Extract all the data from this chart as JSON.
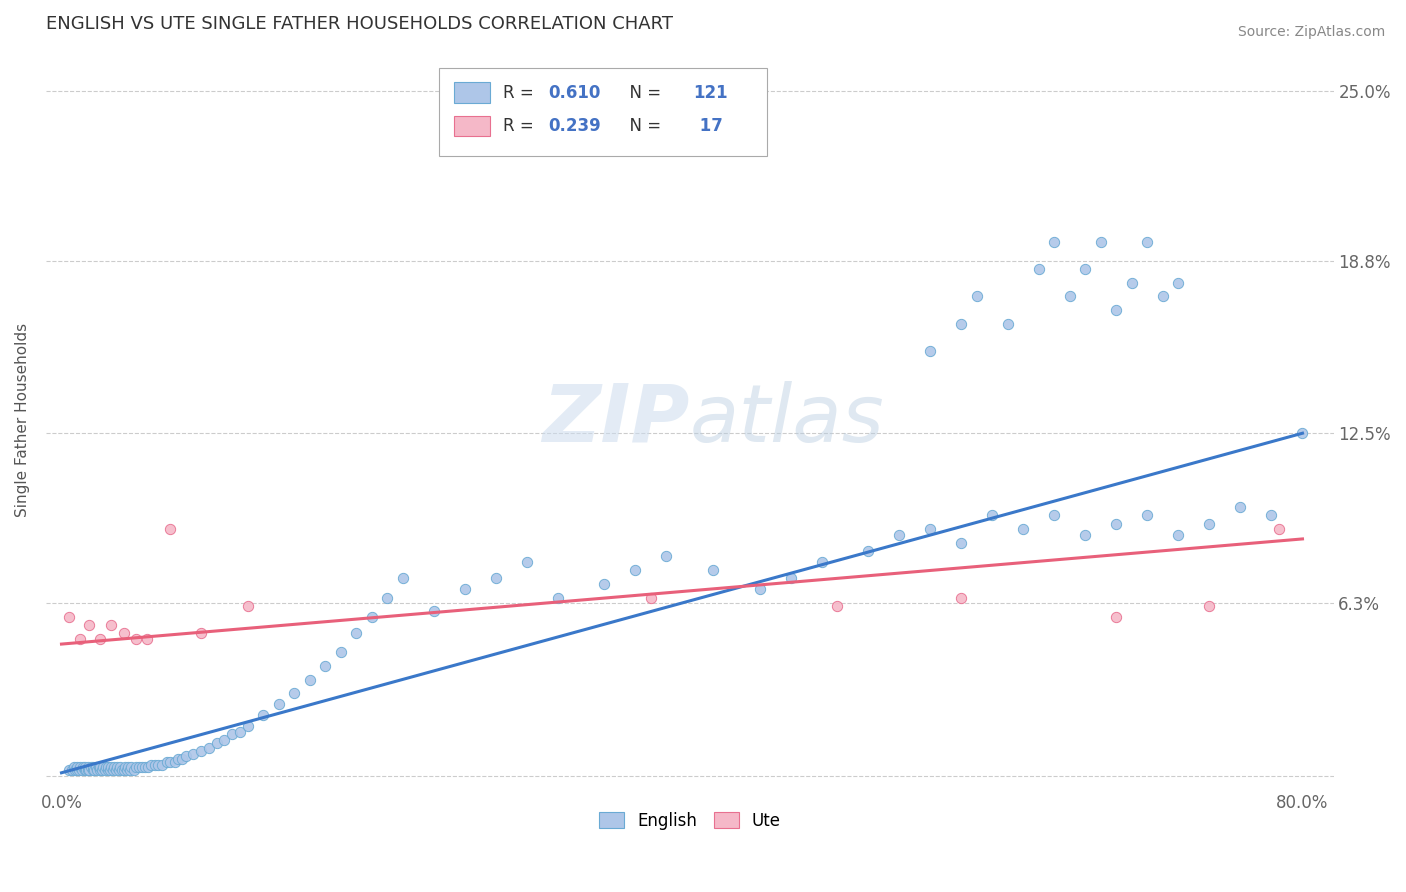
{
  "title": "ENGLISH VS UTE SINGLE FATHER HOUSEHOLDS CORRELATION CHART",
  "source": "Source: ZipAtlas.com",
  "ylabel": "Single Father Households",
  "xlim": [
    -0.01,
    0.82
  ],
  "ylim": [
    -0.005,
    0.265
  ],
  "xtick_positions": [
    0.0,
    0.1,
    0.2,
    0.3,
    0.4,
    0.5,
    0.6,
    0.7,
    0.8
  ],
  "xticklabels": [
    "0.0%",
    "",
    "",
    "",
    "",
    "",
    "",
    "",
    "80.0%"
  ],
  "ytick_positions": [
    0.0,
    0.063,
    0.125,
    0.188,
    0.25
  ],
  "ytick_labels": [
    "",
    "6.3%",
    "12.5%",
    "18.8%",
    "25.0%"
  ],
  "english_fill_color": "#aec6e8",
  "english_edge_color": "#6aaad4",
  "ute_fill_color": "#f5b8c8",
  "ute_edge_color": "#e87090",
  "english_line_color": "#3a78c9",
  "ute_line_color": "#e8607a",
  "R_english": 0.61,
  "N_english": 121,
  "R_ute": 0.239,
  "N_ute": 17,
  "legend_label_english": "English",
  "legend_label_ute": "Ute",
  "watermark": "ZIPatlas",
  "english_slope": 0.155,
  "english_intercept": 0.001,
  "ute_slope": 0.048,
  "ute_intercept": 0.048,
  "eng_x": [
    0.005,
    0.007,
    0.008,
    0.009,
    0.01,
    0.01,
    0.011,
    0.012,
    0.013,
    0.014,
    0.015,
    0.015,
    0.016,
    0.017,
    0.017,
    0.018,
    0.019,
    0.02,
    0.02,
    0.021,
    0.022,
    0.023,
    0.024,
    0.025,
    0.025,
    0.026,
    0.027,
    0.028,
    0.029,
    0.03,
    0.03,
    0.031,
    0.032,
    0.033,
    0.034,
    0.035,
    0.036,
    0.037,
    0.038,
    0.039,
    0.04,
    0.041,
    0.042,
    0.043,
    0.044,
    0.045,
    0.047,
    0.048,
    0.05,
    0.052,
    0.054,
    0.056,
    0.058,
    0.06,
    0.062,
    0.065,
    0.068,
    0.07,
    0.073,
    0.075,
    0.078,
    0.08,
    0.085,
    0.09,
    0.095,
    0.1,
    0.105,
    0.11,
    0.115,
    0.12,
    0.13,
    0.14,
    0.15,
    0.16,
    0.17,
    0.18,
    0.19,
    0.2,
    0.21,
    0.22,
    0.24,
    0.26,
    0.28,
    0.3,
    0.32,
    0.35,
    0.37,
    0.39,
    0.42,
    0.45,
    0.47,
    0.49,
    0.52,
    0.54,
    0.56,
    0.58,
    0.6,
    0.62,
    0.64,
    0.66,
    0.68,
    0.7,
    0.72,
    0.74,
    0.76,
    0.78,
    0.8,
    0.56,
    0.58,
    0.59,
    0.61,
    0.63,
    0.64,
    0.65,
    0.66,
    0.67,
    0.68,
    0.69,
    0.7,
    0.71,
    0.72
  ],
  "eng_y": [
    0.002,
    0.002,
    0.003,
    0.002,
    0.002,
    0.003,
    0.002,
    0.003,
    0.002,
    0.003,
    0.002,
    0.003,
    0.002,
    0.003,
    0.002,
    0.002,
    0.003,
    0.002,
    0.003,
    0.002,
    0.003,
    0.002,
    0.003,
    0.002,
    0.003,
    0.002,
    0.003,
    0.002,
    0.003,
    0.002,
    0.003,
    0.002,
    0.003,
    0.002,
    0.003,
    0.002,
    0.003,
    0.002,
    0.003,
    0.002,
    0.002,
    0.003,
    0.002,
    0.003,
    0.002,
    0.003,
    0.002,
    0.003,
    0.003,
    0.003,
    0.003,
    0.003,
    0.004,
    0.004,
    0.004,
    0.004,
    0.005,
    0.005,
    0.005,
    0.006,
    0.006,
    0.007,
    0.008,
    0.009,
    0.01,
    0.012,
    0.013,
    0.015,
    0.016,
    0.018,
    0.022,
    0.026,
    0.03,
    0.035,
    0.04,
    0.045,
    0.052,
    0.058,
    0.065,
    0.072,
    0.06,
    0.068,
    0.072,
    0.078,
    0.065,
    0.07,
    0.075,
    0.08,
    0.075,
    0.068,
    0.072,
    0.078,
    0.082,
    0.088,
    0.09,
    0.085,
    0.095,
    0.09,
    0.095,
    0.088,
    0.092,
    0.095,
    0.088,
    0.092,
    0.098,
    0.095,
    0.125,
    0.155,
    0.165,
    0.175,
    0.165,
    0.185,
    0.195,
    0.175,
    0.185,
    0.195,
    0.17,
    0.18,
    0.195,
    0.175,
    0.18
  ],
  "ute_x": [
    0.005,
    0.012,
    0.018,
    0.025,
    0.032,
    0.04,
    0.048,
    0.055,
    0.07,
    0.09,
    0.12,
    0.38,
    0.5,
    0.58,
    0.68,
    0.74,
    0.785
  ],
  "ute_y": [
    0.058,
    0.05,
    0.055,
    0.05,
    0.055,
    0.052,
    0.05,
    0.05,
    0.09,
    0.052,
    0.062,
    0.065,
    0.062,
    0.065,
    0.058,
    0.062,
    0.09
  ]
}
